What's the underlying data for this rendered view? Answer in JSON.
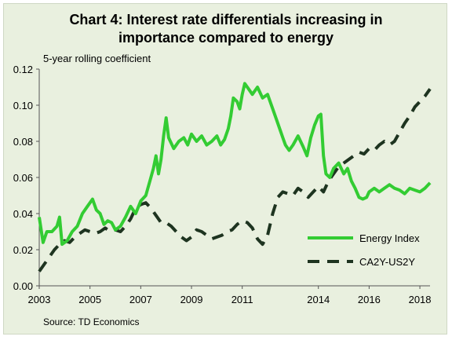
{
  "chart_data": {
    "type": "line",
    "title_line1": "Chart 4: Interest rate differentials increasing in",
    "title_line2": "importance compared to energy",
    "ylabel": "5-year rolling coefficient",
    "source": "Source: TD Economics",
    "xlim": [
      2003,
      2018.4
    ],
    "ylim": [
      0,
      0.12
    ],
    "x_ticks": [
      2003,
      2005,
      2007,
      2009,
      2011,
      2014,
      2016,
      2018
    ],
    "y_ticks": [
      "0.00",
      "0.02",
      "0.04",
      "0.06",
      "0.08",
      "0.10",
      "0.12"
    ],
    "legend_position": "bottom-right",
    "series": [
      {
        "name": "Energy Index",
        "color": "#33cc33",
        "style": "solid",
        "points": [
          [
            2003.0,
            0.038
          ],
          [
            2003.15,
            0.024
          ],
          [
            2003.3,
            0.03
          ],
          [
            2003.5,
            0.03
          ],
          [
            2003.7,
            0.033
          ],
          [
            2003.8,
            0.038
          ],
          [
            2003.9,
            0.023
          ],
          [
            2004.1,
            0.025
          ],
          [
            2004.3,
            0.03
          ],
          [
            2004.5,
            0.033
          ],
          [
            2004.7,
            0.04
          ],
          [
            2004.9,
            0.044
          ],
          [
            2005.0,
            0.046
          ],
          [
            2005.1,
            0.048
          ],
          [
            2005.25,
            0.042
          ],
          [
            2005.4,
            0.04
          ],
          [
            2005.55,
            0.034
          ],
          [
            2005.7,
            0.036
          ],
          [
            2005.85,
            0.035
          ],
          [
            2006.0,
            0.031
          ],
          [
            2006.2,
            0.033
          ],
          [
            2006.4,
            0.038
          ],
          [
            2006.6,
            0.044
          ],
          [
            2006.8,
            0.04
          ],
          [
            2007.0,
            0.047
          ],
          [
            2007.2,
            0.05
          ],
          [
            2007.4,
            0.06
          ],
          [
            2007.5,
            0.065
          ],
          [
            2007.6,
            0.072
          ],
          [
            2007.7,
            0.062
          ],
          [
            2007.8,
            0.07
          ],
          [
            2007.9,
            0.083
          ],
          [
            2008.0,
            0.093
          ],
          [
            2008.1,
            0.082
          ],
          [
            2008.3,
            0.076
          ],
          [
            2008.5,
            0.08
          ],
          [
            2008.7,
            0.082
          ],
          [
            2008.85,
            0.078
          ],
          [
            2009.0,
            0.084
          ],
          [
            2009.2,
            0.08
          ],
          [
            2009.4,
            0.083
          ],
          [
            2009.6,
            0.078
          ],
          [
            2009.8,
            0.08
          ],
          [
            2010.0,
            0.083
          ],
          [
            2010.15,
            0.078
          ],
          [
            2010.3,
            0.081
          ],
          [
            2010.45,
            0.087
          ],
          [
            2010.55,
            0.094
          ],
          [
            2010.65,
            0.104
          ],
          [
            2010.8,
            0.102
          ],
          [
            2010.9,
            0.098
          ],
          [
            2011.0,
            0.106
          ],
          [
            2011.1,
            0.112
          ],
          [
            2011.25,
            0.109
          ],
          [
            2011.4,
            0.106
          ],
          [
            2011.6,
            0.11
          ],
          [
            2011.8,
            0.104
          ],
          [
            2012.0,
            0.106
          ],
          [
            2012.2,
            0.098
          ],
          [
            2012.35,
            0.092
          ],
          [
            2012.5,
            0.086
          ],
          [
            2012.6,
            0.082
          ],
          [
            2012.7,
            0.078
          ],
          [
            2012.85,
            0.075
          ],
          [
            2013.0,
            0.078
          ],
          [
            2013.2,
            0.083
          ],
          [
            2013.4,
            0.077
          ],
          [
            2013.55,
            0.072
          ],
          [
            2013.7,
            0.082
          ],
          [
            2013.85,
            0.089
          ],
          [
            2014.0,
            0.094
          ],
          [
            2014.1,
            0.095
          ],
          [
            2014.2,
            0.072
          ],
          [
            2014.3,
            0.062
          ],
          [
            2014.45,
            0.06
          ],
          [
            2014.6,
            0.065
          ],
          [
            2014.8,
            0.068
          ],
          [
            2015.0,
            0.062
          ],
          [
            2015.15,
            0.065
          ],
          [
            2015.3,
            0.058
          ],
          [
            2015.45,
            0.054
          ],
          [
            2015.6,
            0.049
          ],
          [
            2015.75,
            0.048
          ],
          [
            2015.9,
            0.049
          ],
          [
            2016.0,
            0.052
          ],
          [
            2016.2,
            0.054
          ],
          [
            2016.4,
            0.052
          ],
          [
            2016.6,
            0.054
          ],
          [
            2016.8,
            0.056
          ],
          [
            2017.0,
            0.054
          ],
          [
            2017.2,
            0.053
          ],
          [
            2017.4,
            0.051
          ],
          [
            2017.6,
            0.054
          ],
          [
            2017.8,
            0.053
          ],
          [
            2018.0,
            0.052
          ],
          [
            2018.2,
            0.054
          ],
          [
            2018.4,
            0.057
          ]
        ]
      },
      {
        "name": "CA2Y-US2Y",
        "color": "#1e3420",
        "style": "dashed",
        "points": [
          [
            2003.0,
            0.008
          ],
          [
            2003.2,
            0.012
          ],
          [
            2003.4,
            0.016
          ],
          [
            2003.6,
            0.02
          ],
          [
            2003.8,
            0.023
          ],
          [
            2004.0,
            0.025
          ],
          [
            2004.2,
            0.024
          ],
          [
            2004.4,
            0.027
          ],
          [
            2004.6,
            0.029
          ],
          [
            2004.8,
            0.031
          ],
          [
            2005.0,
            0.03
          ],
          [
            2005.2,
            0.029
          ],
          [
            2005.4,
            0.03
          ],
          [
            2005.6,
            0.032
          ],
          [
            2005.8,
            0.03
          ],
          [
            2006.0,
            0.031
          ],
          [
            2006.2,
            0.03
          ],
          [
            2006.4,
            0.033
          ],
          [
            2006.6,
            0.037
          ],
          [
            2006.8,
            0.043
          ],
          [
            2007.0,
            0.045
          ],
          [
            2007.2,
            0.046
          ],
          [
            2007.4,
            0.043
          ],
          [
            2007.6,
            0.039
          ],
          [
            2007.8,
            0.035
          ],
          [
            2008.0,
            0.035
          ],
          [
            2008.2,
            0.033
          ],
          [
            2008.4,
            0.03
          ],
          [
            2008.6,
            0.027
          ],
          [
            2008.8,
            0.025
          ],
          [
            2009.0,
            0.027
          ],
          [
            2009.2,
            0.031
          ],
          [
            2009.4,
            0.03
          ],
          [
            2009.6,
            0.028
          ],
          [
            2009.8,
            0.026
          ],
          [
            2010.0,
            0.027
          ],
          [
            2010.2,
            0.028
          ],
          [
            2010.4,
            0.03
          ],
          [
            2010.6,
            0.031
          ],
          [
            2010.8,
            0.034
          ],
          [
            2011.0,
            0.036
          ],
          [
            2011.2,
            0.035
          ],
          [
            2011.4,
            0.032
          ],
          [
            2011.6,
            0.026
          ],
          [
            2011.8,
            0.023
          ],
          [
            2012.0,
            0.028
          ],
          [
            2012.2,
            0.04
          ],
          [
            2012.4,
            0.049
          ],
          [
            2012.6,
            0.052
          ],
          [
            2012.8,
            0.051
          ],
          [
            2013.0,
            0.05
          ],
          [
            2013.2,
            0.054
          ],
          [
            2013.4,
            0.052
          ],
          [
            2013.6,
            0.049
          ],
          [
            2013.8,
            0.052
          ],
          [
            2014.0,
            0.055
          ],
          [
            2014.2,
            0.052
          ],
          [
            2014.4,
            0.058
          ],
          [
            2014.6,
            0.062
          ],
          [
            2014.8,
            0.066
          ],
          [
            2015.0,
            0.068
          ],
          [
            2015.2,
            0.07
          ],
          [
            2015.4,
            0.072
          ],
          [
            2015.6,
            0.074
          ],
          [
            2015.8,
            0.073
          ],
          [
            2016.0,
            0.076
          ],
          [
            2016.2,
            0.075
          ],
          [
            2016.4,
            0.078
          ],
          [
            2016.6,
            0.08
          ],
          [
            2016.8,
            0.078
          ],
          [
            2017.0,
            0.08
          ],
          [
            2017.2,
            0.085
          ],
          [
            2017.4,
            0.09
          ],
          [
            2017.6,
            0.094
          ],
          [
            2017.8,
            0.099
          ],
          [
            2018.0,
            0.102
          ],
          [
            2018.2,
            0.105
          ],
          [
            2018.4,
            0.109
          ]
        ]
      }
    ]
  }
}
